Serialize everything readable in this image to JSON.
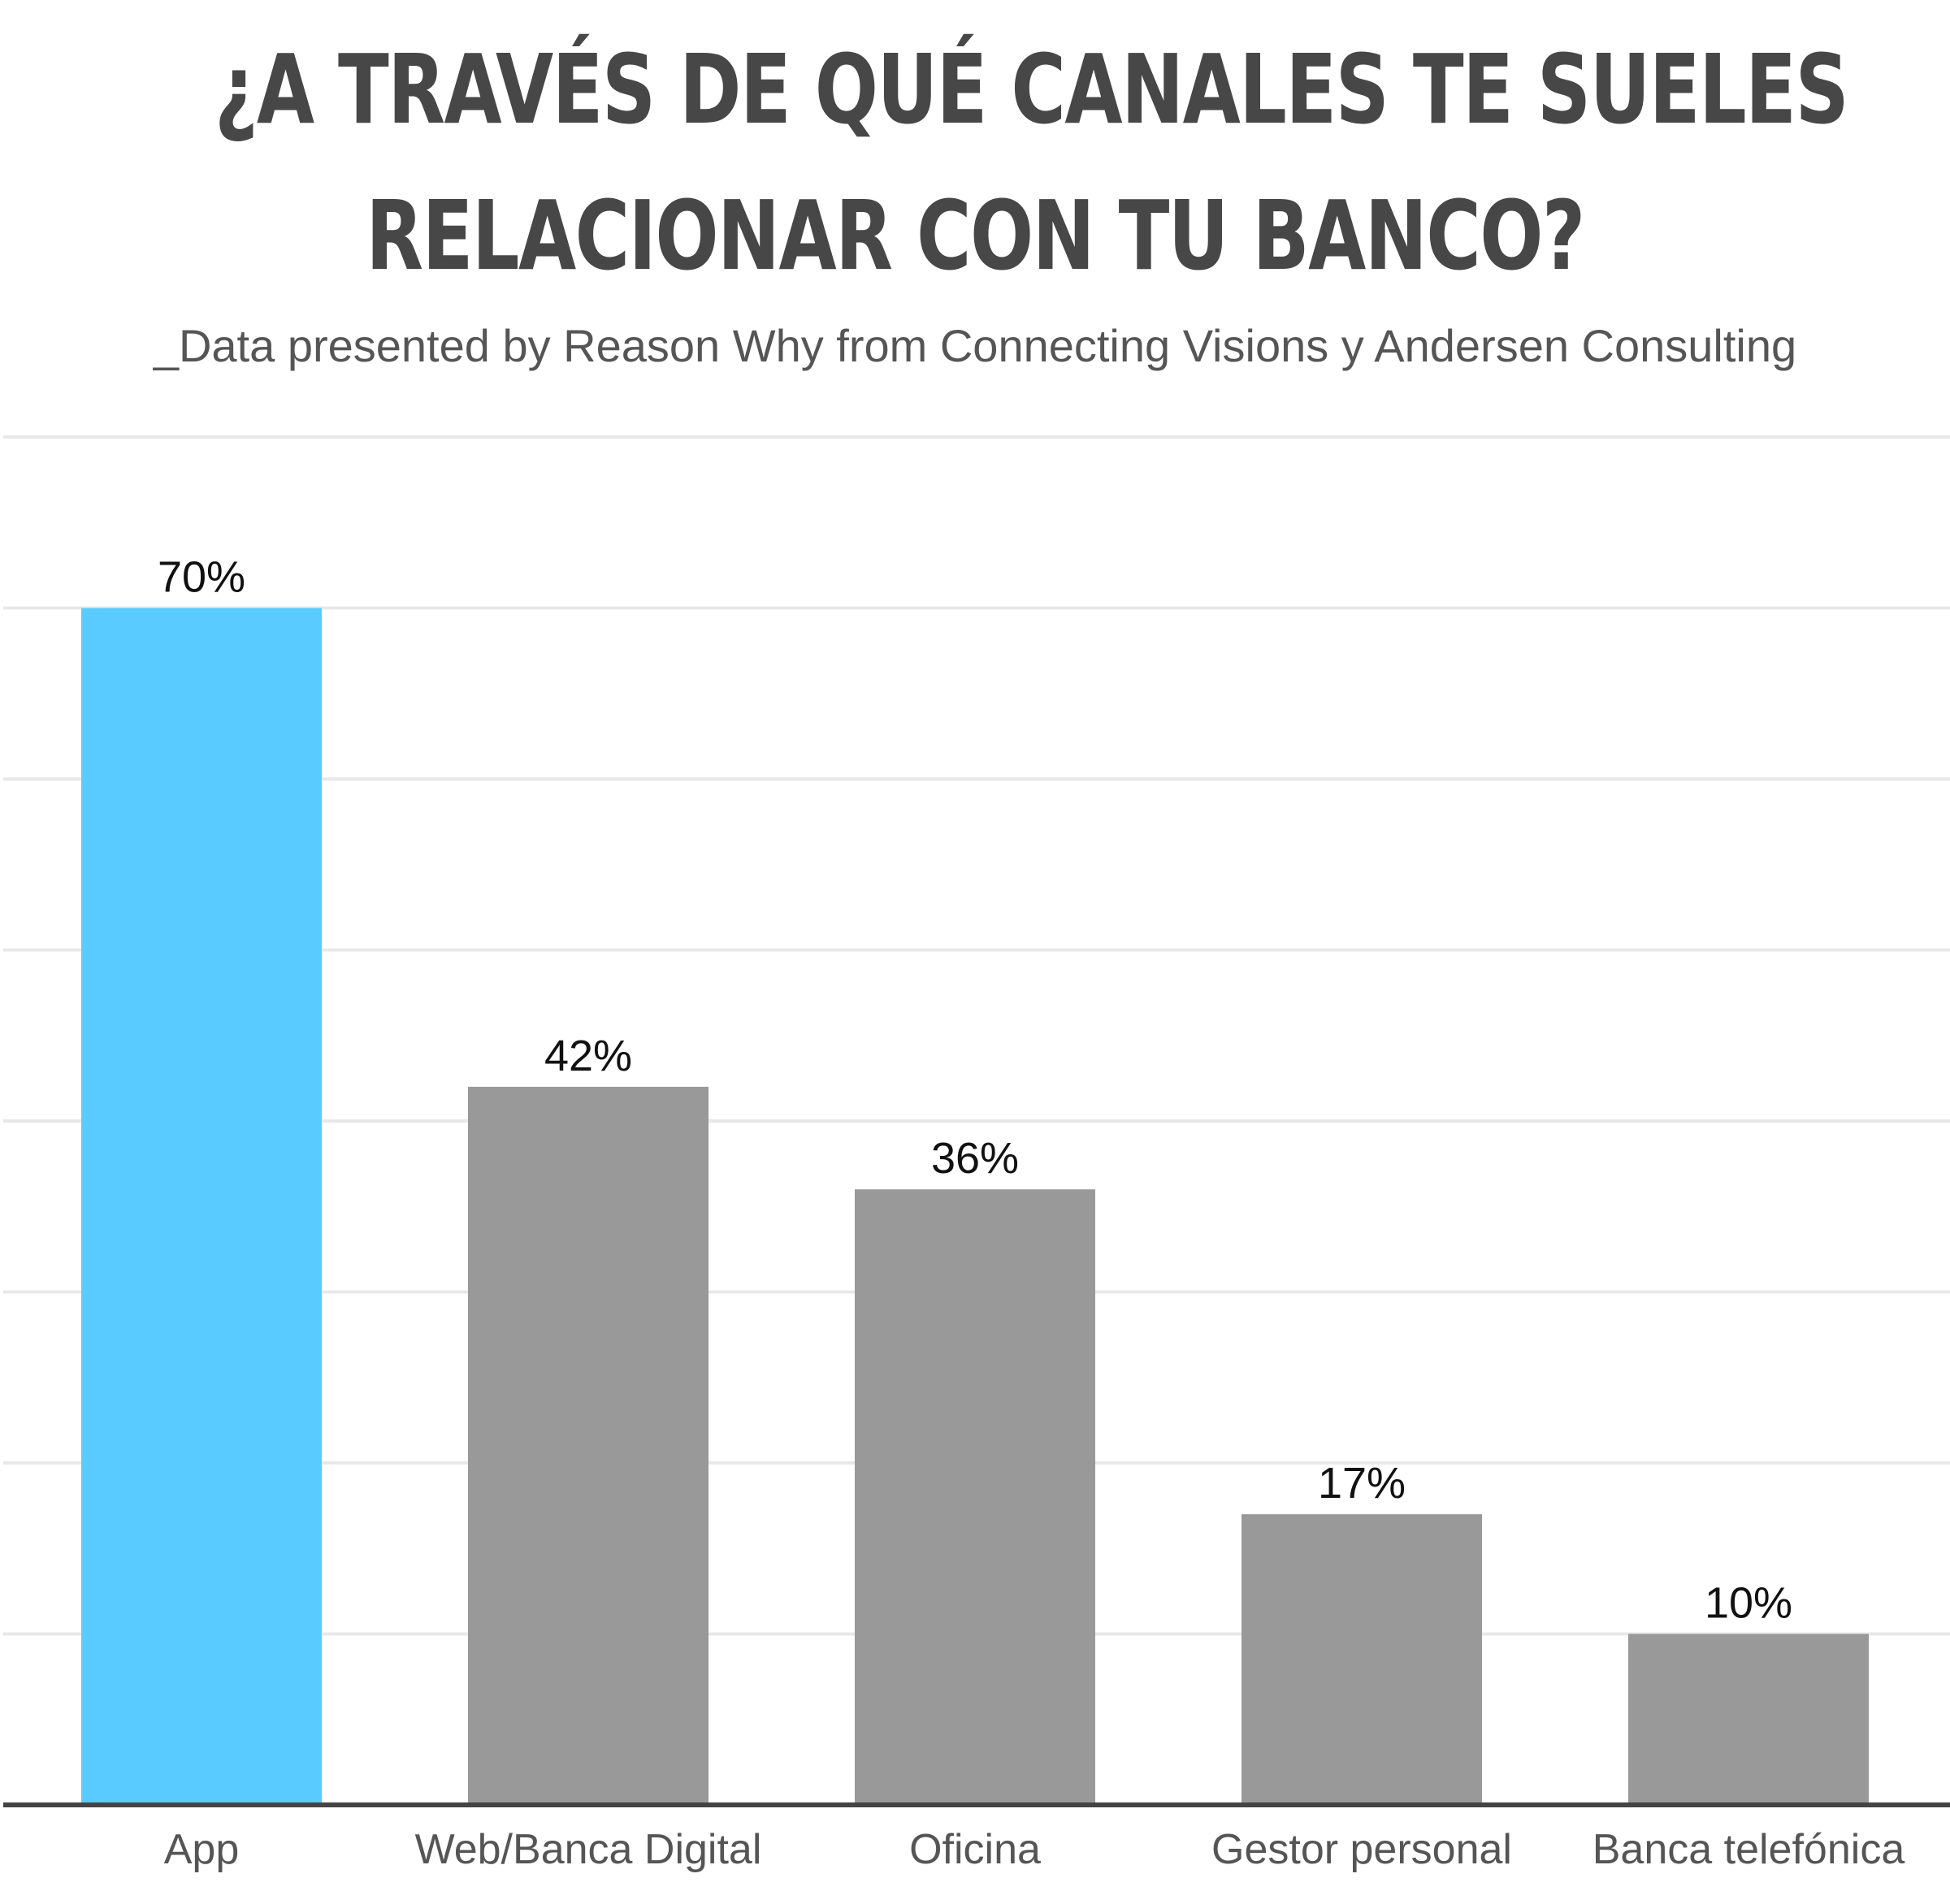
{
  "chart_data": {
    "type": "bar",
    "title_line1": "¿A TRAVÉS DE QUÉ CANALES TE SUELES",
    "title_line2": "RELACIONAR CON TU BANCO?",
    "subtitle": "_Data presented by Reason Why from Connecting Visions y Andersen Consulting",
    "categories": [
      "App",
      "Web/Banca Digital",
      "Oficina",
      "Gestor personal",
      "Banca telefónica"
    ],
    "values": [
      70,
      42,
      36,
      17,
      10
    ],
    "value_labels": [
      "70%",
      "42%",
      "36%",
      "17%",
      "10%"
    ],
    "ylim": [
      0,
      80
    ],
    "grid": true,
    "colors": {
      "highlight": "#5ACBFE",
      "default": "#999999"
    },
    "highlight_index": 0
  }
}
